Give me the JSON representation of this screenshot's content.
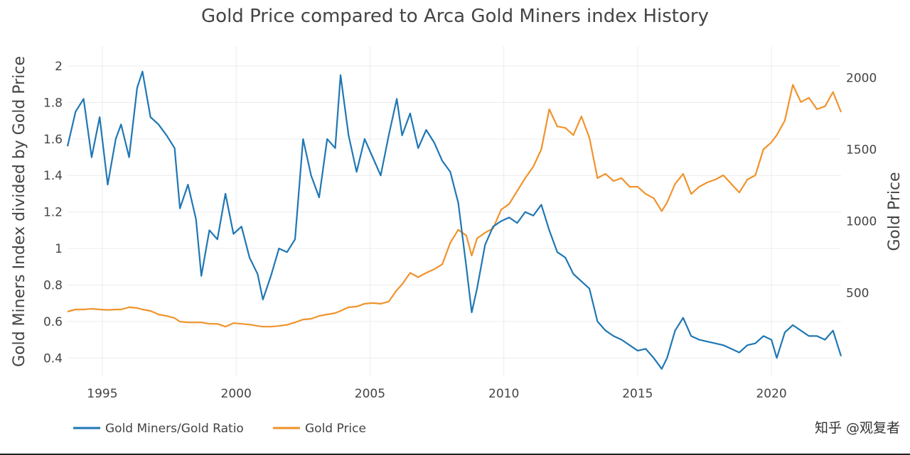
{
  "chart_data": {
    "type": "line",
    "title": "Gold Price compared to Arca Gold Miners index History",
    "xlabel": "",
    "ylabel": "Gold Miners Index divided by Gold Price",
    "y2label": "Gold Price",
    "xlim": [
      1993.7,
      2022.6
    ],
    "ylim": [
      0.3,
      2.07
    ],
    "y2lim": [
      -80,
      2170
    ],
    "x_ticks": [
      1995,
      2000,
      2005,
      2010,
      2015,
      2020
    ],
    "y_ticks": [
      0.4,
      0.6,
      0.8,
      1,
      1.2,
      1.4,
      1.6,
      1.8,
      2
    ],
    "y_tick_labels": [
      "0.4",
      "0.6",
      "0.8",
      "1",
      "1.2",
      "1.4",
      "1.6",
      "1.8",
      "2"
    ],
    "y2_ticks": [
      500,
      1000,
      1500,
      2000
    ],
    "grid": true,
    "legend_position": "bottom-left",
    "series": [
      {
        "name": "Gold Miners/Gold Ratio",
        "axis": "y",
        "color": "#1f77b4",
        "x": [
          1993.7,
          1994.0,
          1994.3,
          1994.6,
          1994.9,
          1995.2,
          1995.5,
          1995.7,
          1996.0,
          1996.3,
          1996.5,
          1996.8,
          1997.1,
          1997.4,
          1997.7,
          1997.9,
          1998.2,
          1998.5,
          1998.7,
          1999.0,
          1999.3,
          1999.6,
          1999.9,
          2000.2,
          2000.5,
          2000.8,
          2001.0,
          2001.3,
          2001.6,
          2001.9,
          2002.2,
          2002.5,
          2002.8,
          2003.1,
          2003.4,
          2003.7,
          2003.9,
          2004.2,
          2004.5,
          2004.8,
          2005.1,
          2005.4,
          2005.7,
          2006.0,
          2006.2,
          2006.5,
          2006.8,
          2007.1,
          2007.4,
          2007.7,
          2008.0,
          2008.3,
          2008.6,
          2008.8,
          2009.0,
          2009.3,
          2009.6,
          2009.9,
          2010.2,
          2010.5,
          2010.8,
          2011.1,
          2011.4,
          2011.7,
          2012.0,
          2012.3,
          2012.6,
          2012.9,
          2013.2,
          2013.5,
          2013.8,
          2014.1,
          2014.4,
          2014.7,
          2015.0,
          2015.3,
          2015.6,
          2015.9,
          2016.1,
          2016.4,
          2016.7,
          2017.0,
          2017.3,
          2017.6,
          2017.9,
          2018.2,
          2018.5,
          2018.8,
          2019.1,
          2019.4,
          2019.7,
          2020.0,
          2020.2,
          2020.5,
          2020.8,
          2021.1,
          2021.4,
          2021.7,
          2022.0,
          2022.3,
          2022.6
        ],
        "values": [
          1.56,
          1.75,
          1.82,
          1.5,
          1.72,
          1.35,
          1.6,
          1.68,
          1.5,
          1.88,
          1.97,
          1.72,
          1.68,
          1.62,
          1.55,
          1.22,
          1.35,
          1.16,
          0.85,
          1.1,
          1.05,
          1.3,
          1.08,
          1.12,
          0.95,
          0.86,
          0.72,
          0.85,
          1.0,
          0.98,
          1.05,
          1.6,
          1.4,
          1.28,
          1.6,
          1.55,
          1.95,
          1.62,
          1.42,
          1.6,
          1.5,
          1.4,
          1.62,
          1.82,
          1.62,
          1.74,
          1.55,
          1.65,
          1.58,
          1.48,
          1.42,
          1.25,
          0.9,
          0.65,
          0.78,
          1.02,
          1.12,
          1.15,
          1.17,
          1.14,
          1.2,
          1.18,
          1.24,
          1.1,
          0.98,
          0.95,
          0.86,
          0.82,
          0.78,
          0.6,
          0.55,
          0.52,
          0.5,
          0.47,
          0.44,
          0.45,
          0.4,
          0.34,
          0.4,
          0.55,
          0.62,
          0.52,
          0.5,
          0.49,
          0.48,
          0.47,
          0.45,
          0.43,
          0.47,
          0.48,
          0.52,
          0.5,
          0.4,
          0.54,
          0.58,
          0.55,
          0.52,
          0.52,
          0.5,
          0.55,
          0.41
        ]
      },
      {
        "name": "Gold Price",
        "axis": "y2",
        "color": "#f0932b",
        "x": [
          1993.7,
          1994.0,
          1994.3,
          1994.6,
          1994.9,
          1995.2,
          1995.5,
          1995.7,
          1996.0,
          1996.3,
          1996.5,
          1996.8,
          1997.1,
          1997.4,
          1997.7,
          1997.9,
          1998.2,
          1998.5,
          1998.7,
          1999.0,
          1999.3,
          1999.6,
          1999.9,
          2000.2,
          2000.5,
          2000.8,
          2001.0,
          2001.3,
          2001.6,
          2001.9,
          2002.2,
          2002.5,
          2002.8,
          2003.1,
          2003.4,
          2003.7,
          2003.9,
          2004.2,
          2004.5,
          2004.8,
          2005.1,
          2005.4,
          2005.7,
          2006.0,
          2006.2,
          2006.5,
          2006.8,
          2007.1,
          2007.4,
          2007.7,
          2008.0,
          2008.3,
          2008.6,
          2008.8,
          2009.0,
          2009.3,
          2009.6,
          2009.9,
          2010.2,
          2010.5,
          2010.8,
          2011.1,
          2011.4,
          2011.7,
          2012.0,
          2012.3,
          2012.6,
          2012.9,
          2013.2,
          2013.5,
          2013.8,
          2014.1,
          2014.4,
          2014.7,
          2015.0,
          2015.3,
          2015.6,
          2015.9,
          2016.1,
          2016.4,
          2016.7,
          2017.0,
          2017.3,
          2017.6,
          2017.9,
          2018.2,
          2018.5,
          2018.8,
          2019.1,
          2019.4,
          2019.7,
          2020.0,
          2020.2,
          2020.5,
          2020.8,
          2021.1,
          2021.4,
          2021.7,
          2022.0,
          2022.3,
          2022.6
        ],
        "values": [
          370,
          385,
          385,
          390,
          385,
          382,
          385,
          385,
          400,
          395,
          385,
          375,
          350,
          340,
          325,
          300,
          295,
          295,
          295,
          285,
          285,
          265,
          290,
          285,
          280,
          270,
          265,
          265,
          270,
          278,
          295,
          315,
          320,
          340,
          350,
          360,
          375,
          400,
          405,
          425,
          430,
          425,
          440,
          520,
          560,
          640,
          610,
          640,
          665,
          700,
          850,
          940,
          900,
          760,
          880,
          920,
          950,
          1080,
          1120,
          1210,
          1300,
          1380,
          1500,
          1780,
          1660,
          1650,
          1600,
          1730,
          1580,
          1300,
          1330,
          1280,
          1300,
          1240,
          1240,
          1190,
          1160,
          1070,
          1130,
          1260,
          1330,
          1190,
          1240,
          1270,
          1290,
          1320,
          1260,
          1200,
          1290,
          1320,
          1500,
          1550,
          1600,
          1700,
          1950,
          1830,
          1860,
          1780,
          1800,
          1900,
          1760
        ]
      }
    ]
  },
  "watermark": "知乎 @观复者"
}
